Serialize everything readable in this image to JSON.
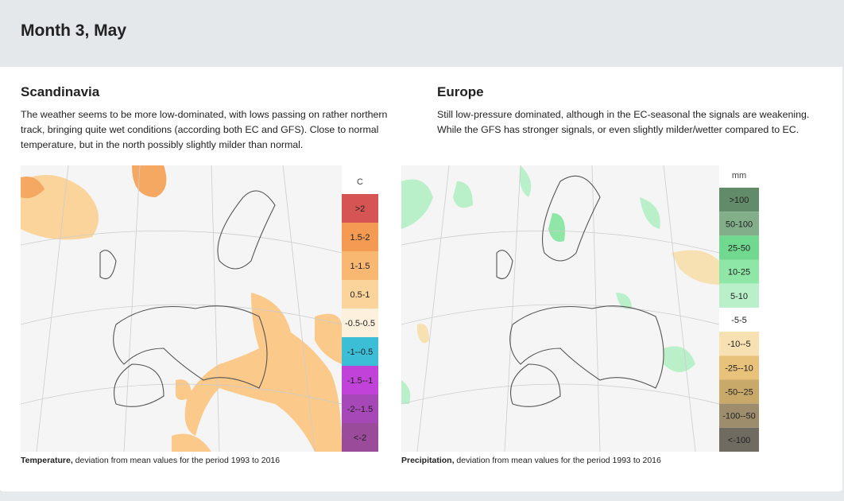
{
  "header": {
    "title": "Month 3, May"
  },
  "sections": [
    {
      "title": "Scandinavia",
      "text": [
        "The weather seems to be more low-dominated, with lows passing on rather northern",
        "track, bringing quite wet conditions (according both EC and GFS). Close to normal",
        "temperature, but in the north possibly slightly milder than normal."
      ],
      "legend": {
        "unit": "C",
        "items": [
          {
            "label": ">2",
            "color": "#d65454"
          },
          {
            "label": "1.5-2",
            "color": "#f59a52"
          },
          {
            "label": "1-1.5",
            "color": "#f8b872"
          },
          {
            "label": "0.5-1",
            "color": "#fbd49c"
          },
          {
            "label": "-0.5-0.5",
            "color": "#fdf1de"
          },
          {
            "label": "-1--0.5",
            "color": "#3cbfd6"
          },
          {
            "label": "-1.5--1",
            "color": "#c142d8"
          },
          {
            "label": "-2--1.5",
            "color": "#a748b9"
          },
          {
            "label": "<-2",
            "color": "#9a4c9a"
          }
        ]
      },
      "caption": {
        "bold": "Temperature,",
        "text": " deviation from mean values for the period 1993 to 2016"
      }
    },
    {
      "title": "Europe",
      "text": [
        "Still low-pressure dominated, although in the EC-seasonal the signals are weakening.",
        "While the GFS has stronger signals, or even slightly milder/wetter compared to EC."
      ],
      "legend": {
        "unit": "mm",
        "items": [
          {
            "label": ">100",
            "color": "#628b6a"
          },
          {
            "label": "50-100",
            "color": "#82ae8a"
          },
          {
            "label": "25-50",
            "color": "#70d98f"
          },
          {
            "label": "10-25",
            "color": "#8ee6a7"
          },
          {
            "label": "5-10",
            "color": "#baf0c9"
          },
          {
            "label": "-5-5",
            "color": "#ffffff"
          },
          {
            "label": "-10--5",
            "color": "#f7e1b2"
          },
          {
            "label": "-25--10",
            "color": "#e8c17a"
          },
          {
            "label": "-50--25",
            "color": "#c9a96a"
          },
          {
            "label": "-100--50",
            "color": "#9d8d6d"
          },
          {
            "label": "<-100",
            "color": "#706b61"
          }
        ]
      },
      "caption": {
        "bold": "Precipitation,",
        "text": " deviation from mean values for the period 1993 to 2016"
      }
    }
  ]
}
